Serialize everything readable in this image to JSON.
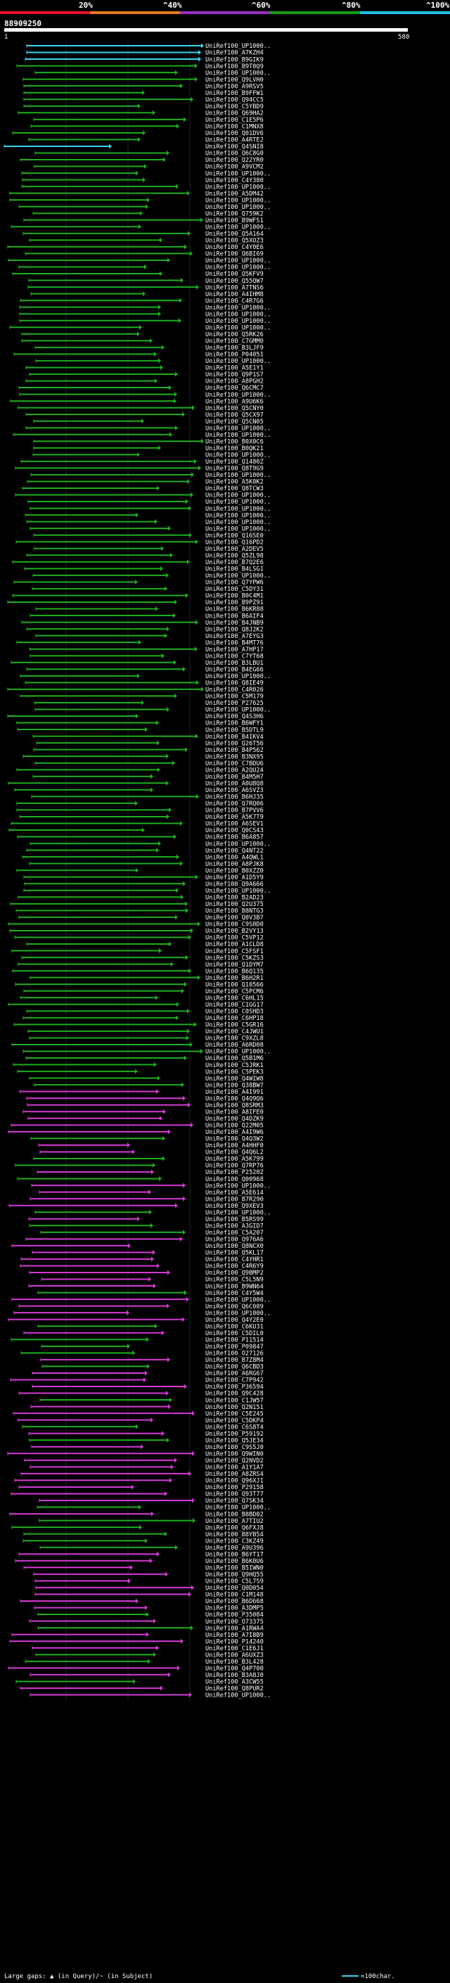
{
  "chart_data": {
    "type": "bar",
    "title": "",
    "query_id": "88909250",
    "query_start": "1",
    "query_end": "580",
    "xlim": [
      1,
      580
    ],
    "scale_labels": [
      "20%",
      "^40%",
      "^60%",
      "^80%",
      "^100%"
    ],
    "scale_colors": [
      "#e8102a",
      "#e87b16",
      "#9a2fc0",
      "#16a016",
      "#20c0e0"
    ],
    "identity_colors": {
      "cyan": "#3ad5f0",
      "green": "#1fae1f",
      "magenta": "#d43ad4"
    },
    "footer": {
      "legend_text": "Large gaps: ▲ (in Query)/~ (in Subject)",
      "scale_text": "=100char."
    },
    "subjects": [
      "UniRef100_UP1000..",
      "UniRef100_A7KZH4",
      "UniRef100_B9GIK9",
      "UniRef100_B9T0Q9",
      "UniRef100_UP1000..",
      "UniRef100_Q9LVH0",
      "UniRef100_A9RSV5",
      "UniRef100_B9FFW1",
      "UniRef100_Q94CC5",
      "UniRef100_C5YBD9",
      "UniRef100_Q69HA2",
      "UniRef100_C1E5P6",
      "UniRef100_C1MNX8",
      "UniRef100_Q01DV6",
      "UniRef100_A4RTE2",
      "UniRef100_Q4SNI8",
      "UniRef100_Q6C8G0",
      "UniRef100_Q22YR0",
      "UniRef100_A9VCM2",
      "UniRef100_UP1000..",
      "UniRef100_C4Y380",
      "UniRef100_UP1000..",
      "UniRef100_A5DM42",
      "UniRef100_UP1000..",
      "UniRef100_UP1000..",
      "UniRef100_Q759K2",
      "UniRef100_B9WFS1",
      "UniRef100_UP1000..",
      "UniRef100_Q5A164",
      "UniRef100_Q5XOZ3",
      "UniRef100_C4Y0E6",
      "UniRef100_Q6BI69",
      "UniRef100_UP1000..",
      "UniRef100_UP1000..",
      "UniRef100_Q5KFV9",
      "UniRef100_Q55QW7",
      "UniRef100_A7TNS6",
      "UniRef100_A4IHM8",
      "UniRef100_C4R7G6",
      "UniRef100_UP1000..",
      "UniRef100_UP1000..",
      "UniRef100_UP1000..",
      "UniRef100_UP1000..",
      "UniRef100_Q5RK26",
      "UniRef100_C7GMM0",
      "UniRef100_B3LJF9",
      "UniRef100_P04051",
      "UniRef100_UP1000..",
      "UniRef100_A5E1Y1",
      "UniRef100_Q9P1S7",
      "UniRef100_A8PGH2",
      "UniRef100_Q6CMC7",
      "UniRef100_UP1000..",
      "UniRef100_A9U6K6",
      "UniRef100_Q5CNY0",
      "UniRef100_Q5CX97",
      "UniRef100_Q5CN05",
      "UniRef100_UP1000..",
      "UniRef100_UP1000..",
      "UniRef100_B0X0C6",
      "UniRef100_B0QK21",
      "UniRef100_UP1000..",
      "UniRef100_Q1480Z",
      "UniRef100_Q8T9G9",
      "UniRef100_UP1000..",
      "UniRef100_A5K0K2",
      "UniRef100_Q8TCW3",
      "UniRef100_UP1000..",
      "UniRef100_UP1000..",
      "UniRef100_UP1000..",
      "UniRef100_UP1000..",
      "UniRef100_UP1000..",
      "UniRef100_UP1000..",
      "UniRef100_Q16SE0",
      "UniRef100_Q16PD2",
      "UniRef100_A2DEV5",
      "UniRef100_Q5ZL98",
      "UniRef100_B7Q2E6",
      "UniRef100_B4LSG1",
      "UniRef100_UP1000..",
      "UniRef100_Q7YPW6",
      "UniRef100_C5DY31",
      "UniRef100_B0C4M1",
      "UniRef100_B9PZ91",
      "UniRef100_B6KR88",
      "UniRef100_B6AIF4",
      "UniRef100_B4JNB9",
      "UniRef100_Q8J2K2",
      "UniRef100_A7EYG3",
      "UniRef100_B4MT76",
      "UniRef100_A7HP17",
      "UniRef100_C7YT68",
      "UniRef100_B3LBU1",
      "UniRef100_B4EG66",
      "UniRef100_UP1000..",
      "UniRef100_Q8IE49",
      "UniRef100_C4R026",
      "UniRef100_C5M179",
      "UniRef100_P27625",
      "UniRef100_UP1000..",
      "UniRef100_Q4S3H6",
      "UniRef100_B6WFY1",
      "UniRef100_B5DTL9",
      "UniRef100_B4IKV4",
      "UniRef100_Q26T56",
      "UniRef100_B4P562",
      "UniRef100_B3NX95",
      "UniRef100_C7BDU6",
      "UniRef100_A2QU24",
      "UniRef100_B4M5H7",
      "UniRef100_A0U8Q8",
      "UniRef100_A6SVZ3",
      "UniRef100_B6HJ35",
      "UniRef100_Q7RQ06",
      "UniRef100_B7PVV6",
      "UniRef100_A5K7T9",
      "UniRef100_A6SEV1",
      "UniRef100_Q0CS43",
      "UniRef100_B6A857",
      "UniRef100_UP1000..",
      "UniRef100_Q4NT22",
      "UniRef100_A4QWL1",
      "UniRef100_A8PJK8",
      "UniRef100_B0XZZ0",
      "UniRef100_A1D5Y9",
      "UniRef100_Q9A666",
      "UniRef100_UP1000..",
      "UniRef100_B2AD23",
      "UniRef100_Q2U375",
      "UniRef100_B8NTG3",
      "UniRef100_Q0V3B7",
      "UniRef100_C9S0D0",
      "UniRef100_B2VY13",
      "UniRef100_C5VP12",
      "UniRef100_A1CLD8",
      "UniRef100_C5FSF1",
      "UniRef100_C5KZS3",
      "UniRef100_Q1DYM7",
      "UniRef100_B6Q135",
      "UniRef100_B6H2R1",
      "UniRef100_Q10566",
      "UniRef100_C5PCM6",
      "UniRef100_C6HL15",
      "UniRef100_C1GG17",
      "UniRef100_C0SHD3",
      "UniRef100_C6HP18",
      "UniRef100_C5GR16",
      "UniRef100_C4JWU1",
      "UniRef100_C9XZL8",
      "UniRef100_A6RD08",
      "UniRef100_UP1000..",
      "UniRef100_Q5B1M6",
      "UniRef100_C5JRK1",
      "UniRef100_C5PEK3",
      "UniRef100_Q4WIW8",
      "UniRef100_Q38BW7",
      "UniRef100_A4I991",
      "UniRef100_Q4Q9Q6",
      "UniRef100_Q8SRM3",
      "UniRef100_A8IFE0",
      "UniRef100_Q4DZK9",
      "UniRef100_Q22M05",
      "UniRef100_A4I9W6",
      "UniRef100_Q4Q3W2",
      "UniRef100_A4HHF0",
      "UniRef100_Q4Q6L2",
      "UniRef100_A5K799",
      "UniRef100_Q7RP76",
      "UniRef100_P25202",
      "UniRef100_Q00968",
      "UniRef100_UP1000..",
      "UniRef100_A5E614",
      "UniRef100_B7R290",
      "UniRef100_Q9XEV3",
      "UniRef100_UP1000..",
      "UniRef100_B5RS99",
      "UniRef100_A3GID7",
      "UniRef100_C5A207",
      "UniRef100_Q976A6",
      "UniRef100_Q8NCX0",
      "UniRef100_Q5KL17",
      "UniRef100_C4YHR1",
      "UniRef100_C4R6Y9",
      "UniRef100_Q9BMP2",
      "UniRef100_C5L5N9",
      "UniRef100_B9WN64",
      "UniRef100_C4Y5W4",
      "UniRef100_UP1000..",
      "UniRef100_Q6C089",
      "UniRef100_UP1000..",
      "UniRef100_Q4Y2E0",
      "UniRef100_C6KU31",
      "UniRef100_C5DIL0",
      "UniRef100_P11514",
      "UniRef100_P09847",
      "UniRef100_O27126",
      "UniRef100_B7Z8M4",
      "UniRef100_Q6CBD3",
      "UniRef100_A6RG67",
      "UniRef100_C7P942",
      "UniRef100_P36594",
      "UniRef100_Q9C428",
      "UniRef100_C1JW57",
      "UniRef100_Q2N151",
      "UniRef100_C5E245",
      "UniRef100_C5DKP4",
      "UniRef100_C6S8T4",
      "UniRef100_P59192",
      "UniRef100_Q5JE34",
      "UniRef100_C9S5J0",
      "UniRef100_Q9WIN0",
      "UniRef100_Q2NVD2",
      "UniRef100_A1Y1A7",
      "UniRef100_A8ZRS4",
      "UniRef100_Q96XJ1",
      "UniRef100_P29158",
      "UniRef100_Q93T77",
      "UniRef100_Q7SK34",
      "UniRef100_UP1000..",
      "UniRef100_B8BD02",
      "UniRef100_A7TIU2",
      "UniRef100_Q6FXJ8",
      "UniRef100_B8YB54",
      "UniRef100_C3KZ49",
      "UniRef100_A9U396",
      "UniRef100_B6YT17",
      "UniRef100_B6K0U6",
      "UniRef100_B5IWN0",
      "UniRef100_Q9HQ55",
      "UniRef100_C5L7S9",
      "UniRef100_Q0D054",
      "UniRef100_C1M148",
      "UniRef100_B6D668",
      "UniRef100_A3DMP5",
      "UniRef100_P35084",
      "UniRef100_O73375",
      "UniRef100_A1RWA4",
      "UniRef100_A7I8B9",
      "UniRef100_P14240",
      "UniRef100_C1E6J1",
      "UniRef100_A6UXZ3",
      "UniRef100_B3L428",
      "UniRef100_Q4P700",
      "UniRef100_B3A8J0",
      "UniRef100_A3CW55",
      "UniRef100_Q8PUR2",
      "UniRef100_UP1000.."
    ]
  }
}
